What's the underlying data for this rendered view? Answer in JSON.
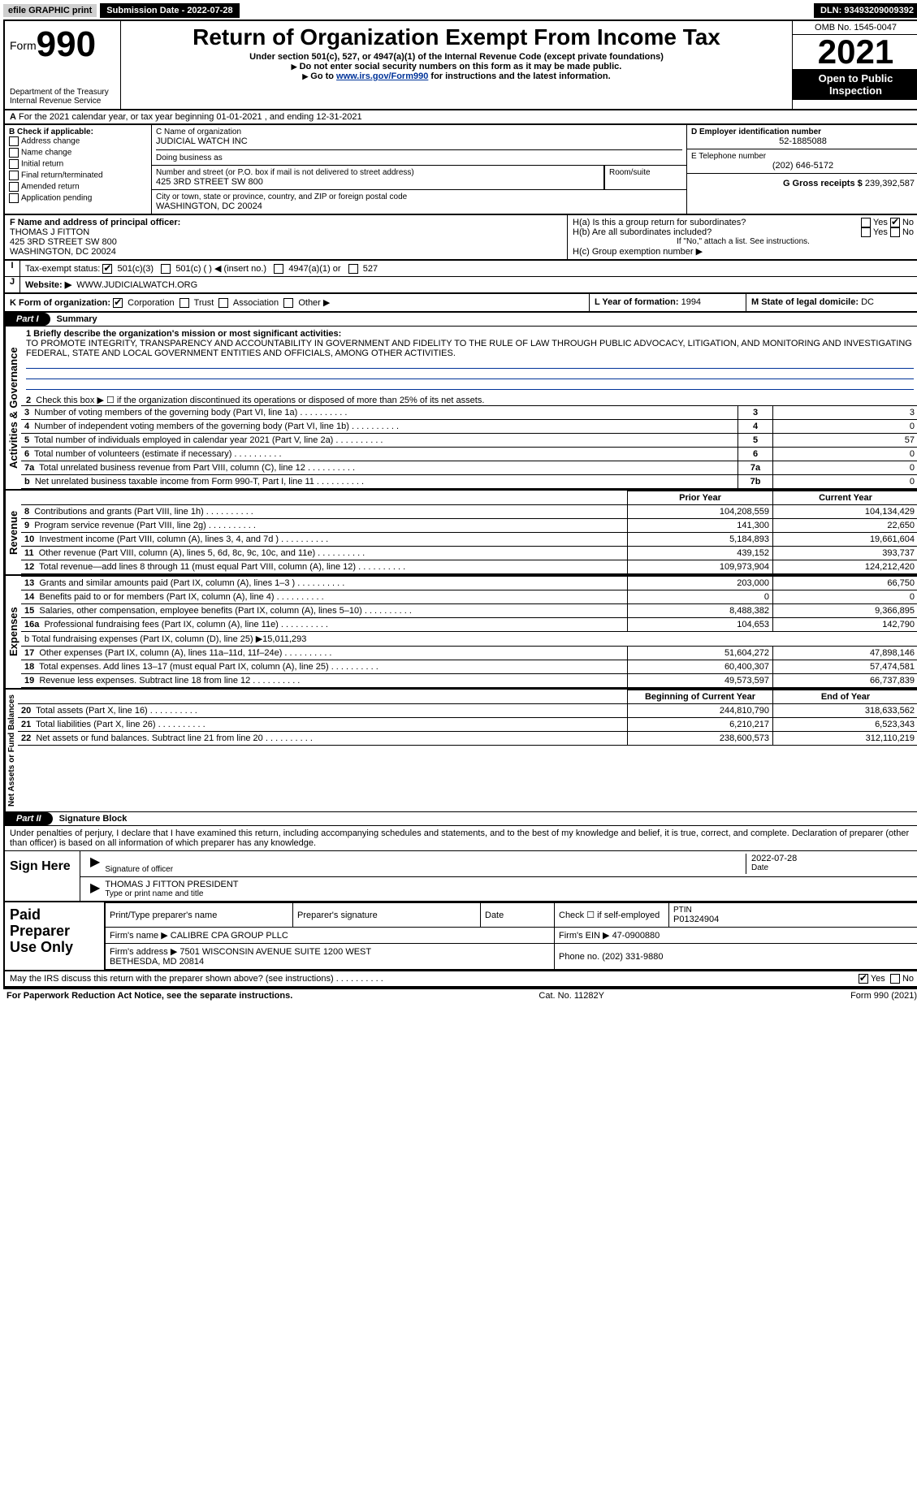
{
  "topbar": {
    "efile": "efile GRAPHIC print",
    "submission_label": "Submission Date - 2022-07-28",
    "dln": "DLN: 93493209009392"
  },
  "header": {
    "form_label": "Form",
    "form_number": "990",
    "title": "Return of Organization Exempt From Income Tax",
    "subtitle": "Under section 501(c), 527, or 4947(a)(1) of the Internal Revenue Code (except private foundations)",
    "note1": "Do not enter social security numbers on this form as it may be made public.",
    "note2_pre": "Go to ",
    "note2_link": "www.irs.gov/Form990",
    "note2_post": " for instructions and the latest information.",
    "dept": "Department of the Treasury",
    "irs": "Internal Revenue Service",
    "omb": "OMB No. 1545-0047",
    "year": "2021",
    "open": "Open to Public Inspection"
  },
  "line_a": "For the 2021 calendar year, or tax year beginning 01-01-2021   , and ending 12-31-2021",
  "box_b": {
    "title": "B Check if applicable:",
    "items": [
      "Address change",
      "Name change",
      "Initial return",
      "Final return/terminated",
      "Amended return",
      "Application pending"
    ]
  },
  "box_c": {
    "label_name": "C Name of organization",
    "org": "JUDICIAL WATCH INC",
    "dba_label": "Doing business as",
    "addr_label": "Number and street (or P.O. box if mail is not delivered to street address)",
    "room_label": "Room/suite",
    "addr": "425 3RD STREET SW 800",
    "city_label": "City or town, state or province, country, and ZIP or foreign postal code",
    "city": "WASHINGTON, DC  20024"
  },
  "box_d": {
    "label": "D Employer identification number",
    "ein": "52-1885088",
    "tel_label": "E Telephone number",
    "tel": "(202) 646-5172",
    "gross_label": "G Gross receipts $",
    "gross": "239,392,587"
  },
  "box_f": {
    "label": "F Name and address of principal officer:",
    "name": "THOMAS J FITTON",
    "addr1": "425 3RD STREET SW 800",
    "addr2": "WASHINGTON, DC  20024"
  },
  "box_h": {
    "a_label": "H(a)  Is this a group return for subordinates?",
    "b_label": "H(b)  Are all subordinates included?",
    "b_note": "If \"No,\" attach a list. See instructions.",
    "c_label": "H(c)  Group exemption number ▶",
    "yes": "Yes",
    "no": "No"
  },
  "line_i": {
    "label": "Tax-exempt status:",
    "opts": [
      "501(c)(3)",
      "501(c) (  ) ◀ (insert no.)",
      "4947(a)(1) or",
      "527"
    ]
  },
  "line_j": {
    "label": "Website: ▶",
    "url": "WWW.JUDICIALWATCH.ORG"
  },
  "line_k": {
    "label": "K Form of organization:",
    "opts": [
      "Corporation",
      "Trust",
      "Association",
      "Other ▶"
    ]
  },
  "line_l": {
    "label": "L Year of formation:",
    "val": "1994"
  },
  "line_m": {
    "label": "M State of legal domicile:",
    "val": "DC"
  },
  "part1": {
    "badge": "Part I",
    "title": "Summary",
    "q1_label": "1 Briefly describe the organization's mission or most significant activities:",
    "q1_text": "TO PROMOTE INTEGRITY, TRANSPARENCY AND ACCOUNTABILITY IN GOVERNMENT AND FIDELITY TO THE RULE OF LAW THROUGH PUBLIC ADVOCACY, LITIGATION, AND MONITORING AND INVESTIGATING FEDERAL, STATE AND LOCAL GOVERNMENT ENTITIES AND OFFICIALS, AMONG OTHER ACTIVITIES.",
    "q2": "Check this box ▶ ☐ if the organization discontinued its operations or disposed of more than 25% of its net assets.",
    "rows_top": [
      {
        "n": "3",
        "desc": "Number of voting members of the governing body (Part VI, line 1a)",
        "box": "3",
        "val": "3"
      },
      {
        "n": "4",
        "desc": "Number of independent voting members of the governing body (Part VI, line 1b)",
        "box": "4",
        "val": "0"
      },
      {
        "n": "5",
        "desc": "Total number of individuals employed in calendar year 2021 (Part V, line 2a)",
        "box": "5",
        "val": "57"
      },
      {
        "n": "6",
        "desc": "Total number of volunteers (estimate if necessary)",
        "box": "6",
        "val": "0"
      },
      {
        "n": "7a",
        "desc": "Total unrelated business revenue from Part VIII, column (C), line 12",
        "box": "7a",
        "val": "0"
      },
      {
        "n": "b",
        "desc": "Net unrelated business taxable income from Form 990-T, Part I, line 11",
        "box": "7b",
        "val": "0"
      }
    ],
    "col_prior": "Prior Year",
    "col_curr": "Current Year",
    "rows_rev": [
      {
        "n": "8",
        "desc": "Contributions and grants (Part VIII, line 1h)",
        "p": "104,208,559",
        "c": "104,134,429"
      },
      {
        "n": "9",
        "desc": "Program service revenue (Part VIII, line 2g)",
        "p": "141,300",
        "c": "22,650"
      },
      {
        "n": "10",
        "desc": "Investment income (Part VIII, column (A), lines 3, 4, and 7d )",
        "p": "5,184,893",
        "c": "19,661,604"
      },
      {
        "n": "11",
        "desc": "Other revenue (Part VIII, column (A), lines 5, 6d, 8c, 9c, 10c, and 11e)",
        "p": "439,152",
        "c": "393,737"
      },
      {
        "n": "12",
        "desc": "Total revenue—add lines 8 through 11 (must equal Part VIII, column (A), line 12)",
        "p": "109,973,904",
        "c": "124,212,420"
      }
    ],
    "rows_exp": [
      {
        "n": "13",
        "desc": "Grants and similar amounts paid (Part IX, column (A), lines 1–3 )",
        "p": "203,000",
        "c": "66,750"
      },
      {
        "n": "14",
        "desc": "Benefits paid to or for members (Part IX, column (A), line 4)",
        "p": "0",
        "c": "0"
      },
      {
        "n": "15",
        "desc": "Salaries, other compensation, employee benefits (Part IX, column (A), lines 5–10)",
        "p": "8,488,382",
        "c": "9,366,895"
      },
      {
        "n": "16a",
        "desc": "Professional fundraising fees (Part IX, column (A), line 11e)",
        "p": "104,653",
        "c": "142,790"
      }
    ],
    "row_b": "b  Total fundraising expenses (Part IX, column (D), line 25) ▶15,011,293",
    "rows_exp2": [
      {
        "n": "17",
        "desc": "Other expenses (Part IX, column (A), lines 11a–11d, 11f–24e)",
        "p": "51,604,272",
        "c": "47,898,146"
      },
      {
        "n": "18",
        "desc": "Total expenses. Add lines 13–17 (must equal Part IX, column (A), line 25)",
        "p": "60,400,307",
        "c": "57,474,581"
      },
      {
        "n": "19",
        "desc": "Revenue less expenses. Subtract line 18 from line 12",
        "p": "49,573,597",
        "c": "66,737,839"
      }
    ],
    "col_beg": "Beginning of Current Year",
    "col_end": "End of Year",
    "rows_net": [
      {
        "n": "20",
        "desc": "Total assets (Part X, line 16)",
        "p": "244,810,790",
        "c": "318,633,562"
      },
      {
        "n": "21",
        "desc": "Total liabilities (Part X, line 26)",
        "p": "6,210,217",
        "c": "6,523,343"
      },
      {
        "n": "22",
        "desc": "Net assets or fund balances. Subtract line 21 from line 20",
        "p": "238,600,573",
        "c": "312,110,219"
      }
    ],
    "vlabels": {
      "gov": "Activities & Governance",
      "rev": "Revenue",
      "exp": "Expenses",
      "net": "Net Assets or Fund Balances"
    }
  },
  "part2": {
    "badge": "Part II",
    "title": "Signature Block",
    "penalty": "Under penalties of perjury, I declare that I have examined this return, including accompanying schedules and statements, and to the best of my knowledge and belief, it is true, correct, and complete. Declaration of preparer (other than officer) is based on all information of which preparer has any knowledge.",
    "sign": "Sign Here",
    "sig_officer": "Signature of officer",
    "sig_date": "Date",
    "sig_date_val": "2022-07-28",
    "sig_name": "THOMAS J FITTON  PRESIDENT",
    "sig_name_label": "Type or print name and title",
    "paid": "Paid Preparer Use Only",
    "hdr": [
      "Print/Type preparer's name",
      "Preparer's signature",
      "Date",
      "Check ☐ if self-employed",
      "PTIN"
    ],
    "ptin": "P01324904",
    "firm_name_label": "Firm's name   ▶",
    "firm_name": "CALIBRE CPA GROUP PLLC",
    "firm_ein_label": "Firm's EIN ▶",
    "firm_ein": "47-0900880",
    "firm_addr_label": "Firm's address ▶",
    "firm_addr": "7501 WISCONSIN AVENUE SUITE 1200 WEST\nBETHESDA, MD  20814",
    "phone_label": "Phone no.",
    "phone": "(202) 331-9880",
    "may": "May the IRS discuss this return with the preparer shown above? (see instructions)",
    "yes": "Yes",
    "no": "No"
  },
  "footer": {
    "left": "For Paperwork Reduction Act Notice, see the separate instructions.",
    "mid": "Cat. No. 11282Y",
    "right": "Form 990 (2021)"
  }
}
